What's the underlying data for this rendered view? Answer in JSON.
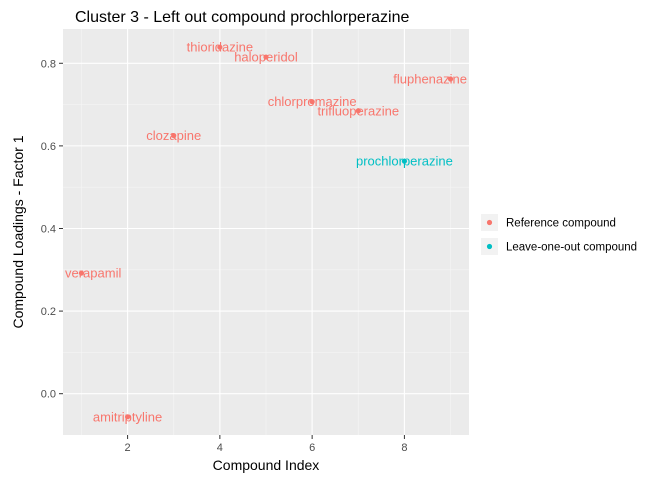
{
  "chart_data": {
    "type": "scatter",
    "title": "Cluster 3 - Left out compound prochlorperazine",
    "xlabel": "Compound Index",
    "ylabel": "Compound Loadings - Factor 1",
    "xlim": [
      0.6,
      9.4
    ],
    "ylim": [
      -0.1,
      0.883
    ],
    "x_ticks": [
      2,
      4,
      6,
      8
    ],
    "x_tick_labels": [
      "2",
      "4",
      "6",
      "8"
    ],
    "y_ticks": [
      0.0,
      0.2,
      0.4,
      0.6,
      0.8
    ],
    "y_tick_labels": [
      "0.0",
      "0.2",
      "0.4",
      "0.6",
      "0.8"
    ],
    "grid": true,
    "legend_position": "right",
    "series": [
      {
        "name": "Reference compound",
        "color": "#F8766D",
        "points": [
          {
            "x": 1,
            "y": 0.292,
            "label": "verapamil"
          },
          {
            "x": 2,
            "y": -0.056,
            "label": "amitriptyline"
          },
          {
            "x": 3,
            "y": 0.625,
            "label": "clozapine"
          },
          {
            "x": 4,
            "y": 0.839,
            "label": "thioridazine"
          },
          {
            "x": 5,
            "y": 0.815,
            "label": "haloperidol"
          },
          {
            "x": 6,
            "y": 0.707,
            "label": "chlorpromazine"
          },
          {
            "x": 7,
            "y": 0.685,
            "label": "trifluoperazine"
          },
          {
            "x": 9,
            "y": 0.762,
            "label": "fluphenazine"
          }
        ]
      },
      {
        "name": "Leave-one-out compound",
        "color": "#00BFC4",
        "points": [
          {
            "x": 8,
            "y": 0.563,
            "label": "prochlorperazine"
          }
        ]
      }
    ]
  },
  "legend": {
    "items": [
      {
        "label": "Reference compound",
        "color": "#F8766D"
      },
      {
        "label": "Leave-one-out compound",
        "color": "#00BFC4"
      }
    ]
  }
}
